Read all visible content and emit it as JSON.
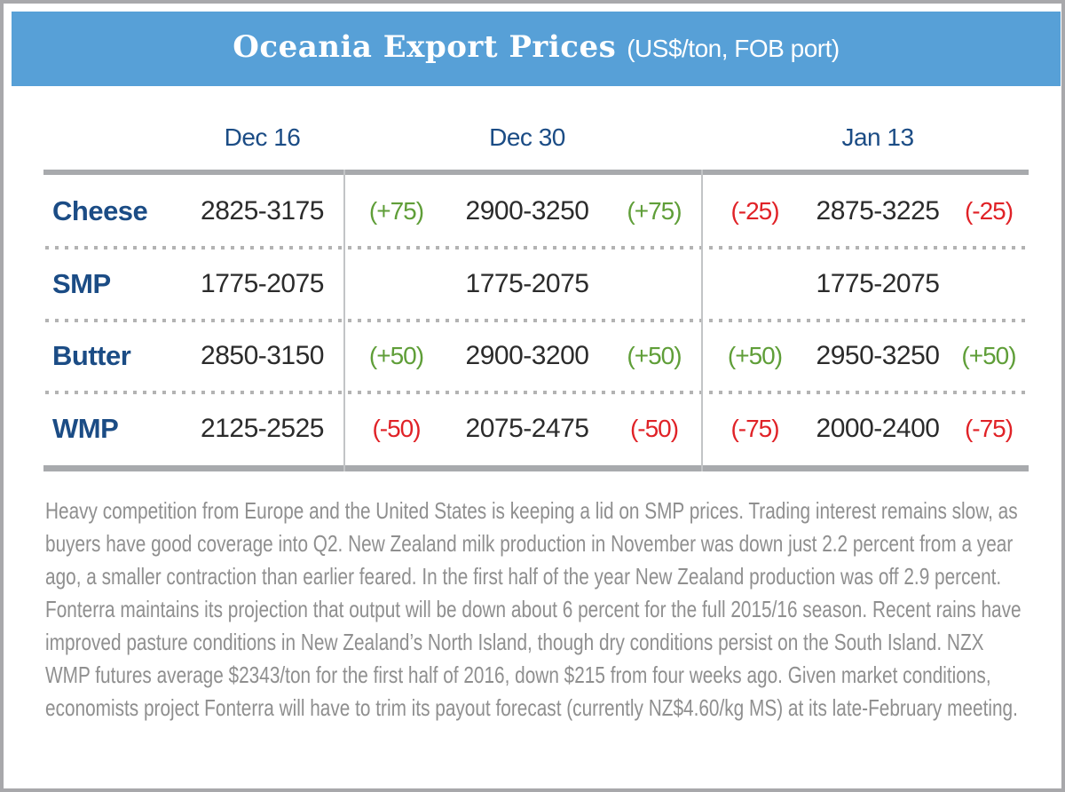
{
  "chart_data": {
    "type": "table",
    "title": "Oceania Export Prices",
    "units": "(US$/ton, FOB port)",
    "columns": [
      "Dec 16",
      "Dec 30",
      "Jan 13"
    ],
    "rows": [
      {
        "product": "Cheese",
        "dec16": "2825-3175",
        "dec30": "2900-3250",
        "dec30_change": "(+75)",
        "dec30_trend": "up",
        "jan13": "2875-3225",
        "jan13_change": "(-25)",
        "jan13_trend": "down"
      },
      {
        "product": "SMP",
        "dec16": "1775-2075",
        "dec30": "1775-2075",
        "dec30_change": "",
        "dec30_trend": "none",
        "jan13": "1775-2075",
        "jan13_change": "",
        "jan13_trend": "none"
      },
      {
        "product": "Butter",
        "dec16": "2850-3150",
        "dec30": "2900-3200",
        "dec30_change": "(+50)",
        "dec30_trend": "up",
        "jan13": "2950-3250",
        "jan13_change": "(+50)",
        "jan13_trend": "up"
      },
      {
        "product": "WMP",
        "dec16": "2125-2525",
        "dec30": "2075-2475",
        "dec30_change": "(-50)",
        "dec30_trend": "down",
        "jan13": "2000-2400",
        "jan13_change": "(-75)",
        "jan13_trend": "down"
      }
    ],
    "footnote": "Heavy competition from Europe and the United States is keeping a lid on SMP prices. Trading interest remains slow, as buyers have good coverage into Q2. New Zealand milk production in November was down just 2.2 percent from a year ago, a smaller contraction than earlier feared. In the first half of the year New Zealand production was off 2.9 percent. Fonterra maintains its projection that output will be down about 6 percent for the full 2015/16 season. Recent rains have improved pasture conditions in New Zealand’s North Island, though dry conditions persist on the South Island. NZX WMP futures average $2343/ton for the first half of 2016, down $215 from four weeks ago. Given market conditions, economists project Fonterra will have to trim its payout forecast (currently NZ$4.60/kg MS) at its late-February meeting.",
    "layout": {
      "legend_position": "none",
      "grid": "off"
    },
    "colors": {
      "banner_blue": "#57A0D7",
      "navy_text": "#1B4C85",
      "price_text": "#2B2B2B",
      "up_green": "#5F9E38",
      "down_red": "#E02227",
      "rule_gray": "#A8AAAD",
      "footnote_gray": "#8F8F8F"
    }
  }
}
